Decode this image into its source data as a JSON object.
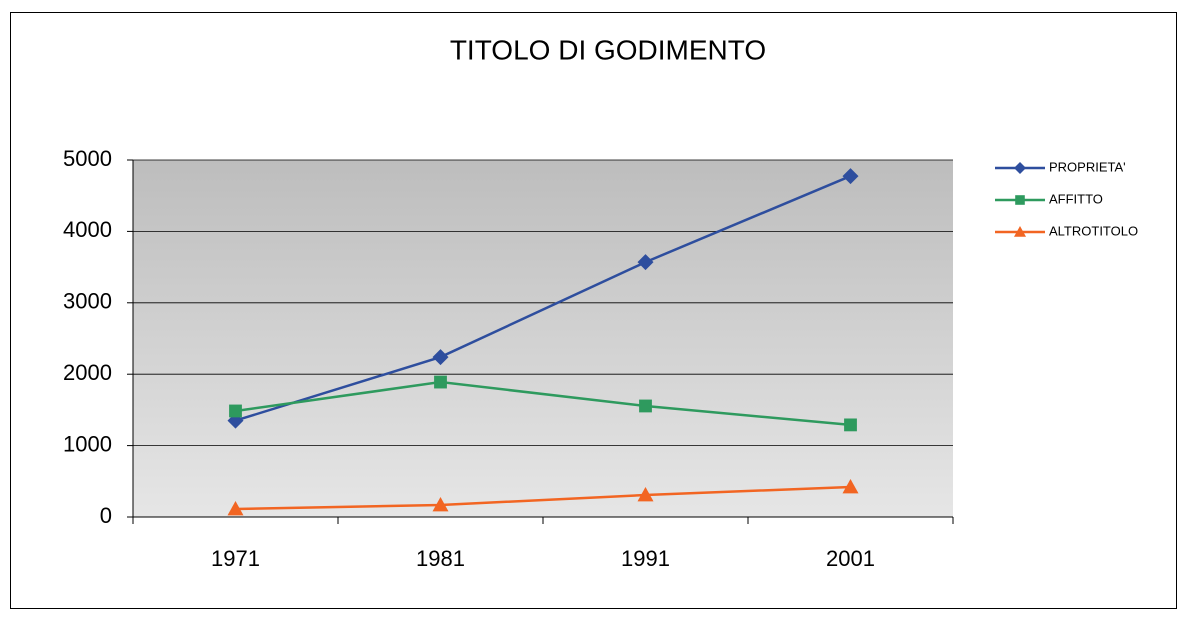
{
  "chart_data": {
    "type": "line",
    "title": "TITOLO DI GODIMENTO",
    "categories": [
      "1971",
      "1981",
      "1991",
      "2001"
    ],
    "series": [
      {
        "name": "PROPRIETA'",
        "color": "#2e4e9e",
        "marker": "diamond",
        "values": [
          1350,
          2240,
          3570,
          4775
        ]
      },
      {
        "name": "AFFITTO",
        "color": "#2e9a5e",
        "marker": "square",
        "values": [
          1485,
          1890,
          1555,
          1290
        ]
      },
      {
        "name": "ALTROTITOLO",
        "color": "#f26522",
        "marker": "triangle",
        "values": [
          112,
          168,
          308,
          420
        ]
      }
    ],
    "ylim": [
      0,
      5000
    ],
    "yticks": [
      0,
      1000,
      2000,
      3000,
      4000,
      5000
    ],
    "grid": true,
    "legend": "right"
  }
}
